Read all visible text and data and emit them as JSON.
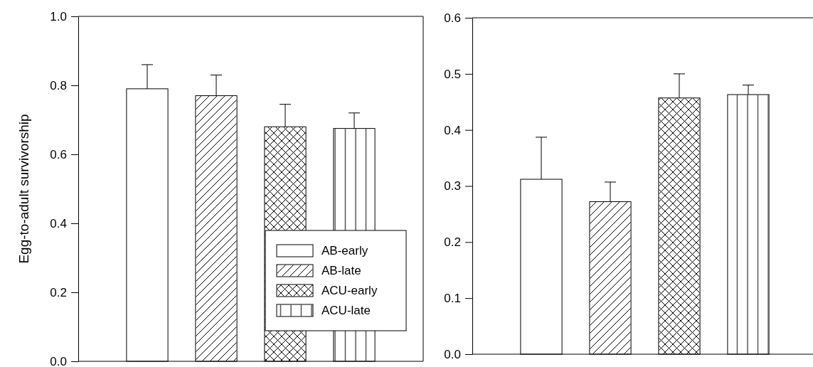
{
  "chart_data": [
    {
      "type": "bar",
      "ylabel": "Egg-to-adult survivorship",
      "categories": [
        null
      ],
      "ylim": [
        0,
        1.0
      ],
      "yticks": [
        {
          "value": 0,
          "label": "0.0"
        },
        {
          "value": 0.2,
          "label": "0.2"
        },
        {
          "value": 0.4,
          "label": "0.4"
        },
        {
          "value": 0.6,
          "label": "0.6"
        },
        {
          "value": 0.8,
          "label": "0.8"
        },
        {
          "value": 1.0,
          "label": "1.0"
        }
      ],
      "legend": "bottom right",
      "series": [
        {
          "name": "AB-early",
          "color": "#ffffff",
          "values": [
            0.79
          ],
          "errors": [
            [
              0.79,
              0.86
            ]
          ]
        },
        {
          "name": "AB-late",
          "color": "#ffffff",
          "values": [
            0.77
          ],
          "errors": [
            [
              0.77,
              0.83
            ]
          ]
        },
        {
          "name": "ACU-early",
          "color": "#ffffff",
          "values": [
            0.68
          ],
          "errors": [
            [
              0.68,
              0.745
            ]
          ]
        },
        {
          "name": "ACU-late",
          "color": "#ffffff",
          "values": [
            0.675
          ],
          "errors": [
            [
              0.675,
              0.72
            ]
          ]
        }
      ]
    },
    {
      "type": "bar",
      "categories": [
        null
      ],
      "ylim": [
        0,
        0.6
      ],
      "yticks": [
        {
          "value": 0,
          "label": "0.0"
        },
        0.1,
        0.2,
        0.3,
        0.4,
        0.5,
        0.6
      ],
      "series": [
        {
          "color": "#ffffff",
          "values": [
            0.312
          ],
          "errors": [
            [
              0.312,
              0.387
            ]
          ]
        },
        {
          "color": "#ffffff",
          "values": [
            0.272
          ],
          "errors": [
            [
              0.272,
              0.307
            ]
          ]
        },
        {
          "color": "#ffffff",
          "values": [
            0.457
          ],
          "errors": [
            [
              0.457,
              0.5
            ]
          ]
        },
        {
          "color": "#ffffff",
          "values": [
            0.463
          ],
          "errors": [
            [
              0.463,
              0.48
            ]
          ]
        }
      ]
    }
  ]
}
